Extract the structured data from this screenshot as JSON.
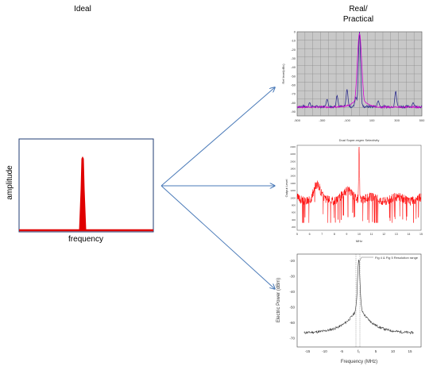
{
  "headings": {
    "ideal": "Ideal",
    "real_line1": "Real/",
    "real_line2": "Practical"
  },
  "ideal_chart": {
    "xlabel": "frequency",
    "ylabel": "amplitude",
    "frame_color": "#1f3b73",
    "signal_color": "#e00000"
  },
  "chart_data": [
    {
      "type": "line",
      "ylabel": "Ref level(dBc)",
      "xticks": [
        "-500",
        "-300",
        "-100",
        "100",
        "300",
        "500"
      ],
      "yticks": [
        "0",
        "-10",
        "-20",
        "-30",
        "-40",
        "-50",
        "-60",
        "-70",
        "-80",
        "-90"
      ],
      "grid": true,
      "background": "#c8c8c8",
      "series": [
        {
          "color": "#2e2e8c",
          "peaks_x": [
            -400,
            -260,
            -180,
            -100,
            0,
            150,
            290,
            430
          ],
          "peak_level": 0,
          "floor": -86
        },
        {
          "color": "#d000d0",
          "peaks_x": [
            0
          ],
          "peak_level": -2,
          "floor": -86
        }
      ]
    },
    {
      "type": "line",
      "title": "Dual Super-regen Selectivity",
      "xlabel": "MHz",
      "ylabel": "Output Level",
      "xticks": [
        "5",
        "6",
        "7",
        "8",
        "9",
        "10",
        "11",
        "12",
        "13",
        "14",
        "15"
      ],
      "yticks": [
        "2400",
        "2200",
        "2000",
        "1800",
        "1600",
        "1400",
        "1200",
        "1000",
        "800",
        "600",
        "400",
        "200"
      ],
      "series_color": "#ff0000"
    },
    {
      "type": "line",
      "annotation": "Fig 4 & Fig 5 Resolution range",
      "xlabel": "Frequency (MHz)",
      "ylabel": "Electric Power (dBm)",
      "xticks": [
        "-15",
        "-10",
        "-5",
        "f₀",
        "5",
        "10",
        "15"
      ],
      "yticks": [
        "-20",
        "-30",
        "-40",
        "-50",
        "-60",
        "-70"
      ],
      "series_color": "#333333"
    }
  ],
  "arrow_color": "#4a7ab8"
}
